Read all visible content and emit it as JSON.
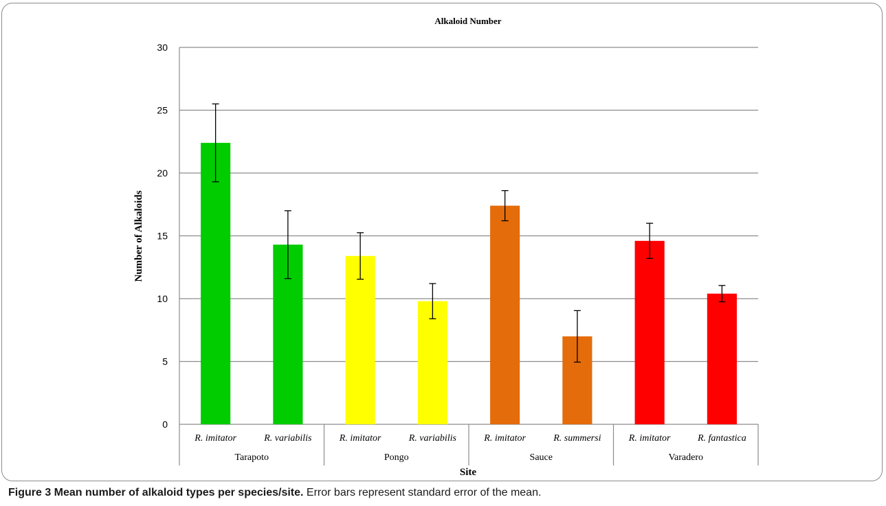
{
  "chart_data": {
    "type": "bar",
    "title": "Alkaloid Number",
    "xlabel": "Site",
    "ylabel": "Number of Alkaloids",
    "ylim": [
      0,
      30
    ],
    "yticks": [
      0,
      5,
      10,
      15,
      20,
      25,
      30
    ],
    "grid": true,
    "groups": [
      {
        "site": "Tarapoto",
        "bars": [
          {
            "species": "R. imitator",
            "value": 22.4,
            "error": 3.1
          },
          {
            "species": "R. variabilis",
            "value": 14.3,
            "error": 2.7
          }
        ]
      },
      {
        "site": "Pongo",
        "bars": [
          {
            "species": "R. imitator",
            "value": 13.4,
            "error": 1.85
          },
          {
            "species": "R. variabilis",
            "value": 9.8,
            "error": 1.4
          }
        ]
      },
      {
        "site": "Sauce",
        "bars": [
          {
            "species": "R. imitator",
            "value": 17.4,
            "error": 1.2
          },
          {
            "species": "R. summersi",
            "value": 7.0,
            "error": 2.05
          }
        ]
      },
      {
        "site": "Varadero",
        "bars": [
          {
            "species": "R. imitator",
            "value": 14.6,
            "error": 1.4
          },
          {
            "species": "R. fantastica",
            "value": 10.4,
            "error": 0.65
          }
        ]
      }
    ],
    "colors": {
      "Tarapoto": "#00cc00",
      "Pongo": "#ffff00",
      "Sauce": "#e46c0a",
      "Varadero": "#ff0000",
      "grid": "#8c8c8c",
      "error_bar": "#000000"
    }
  },
  "caption": {
    "title": "Figure 3 Mean number of alkaloid types per species/site.",
    "text": "Error bars represent standard error of the mean."
  }
}
